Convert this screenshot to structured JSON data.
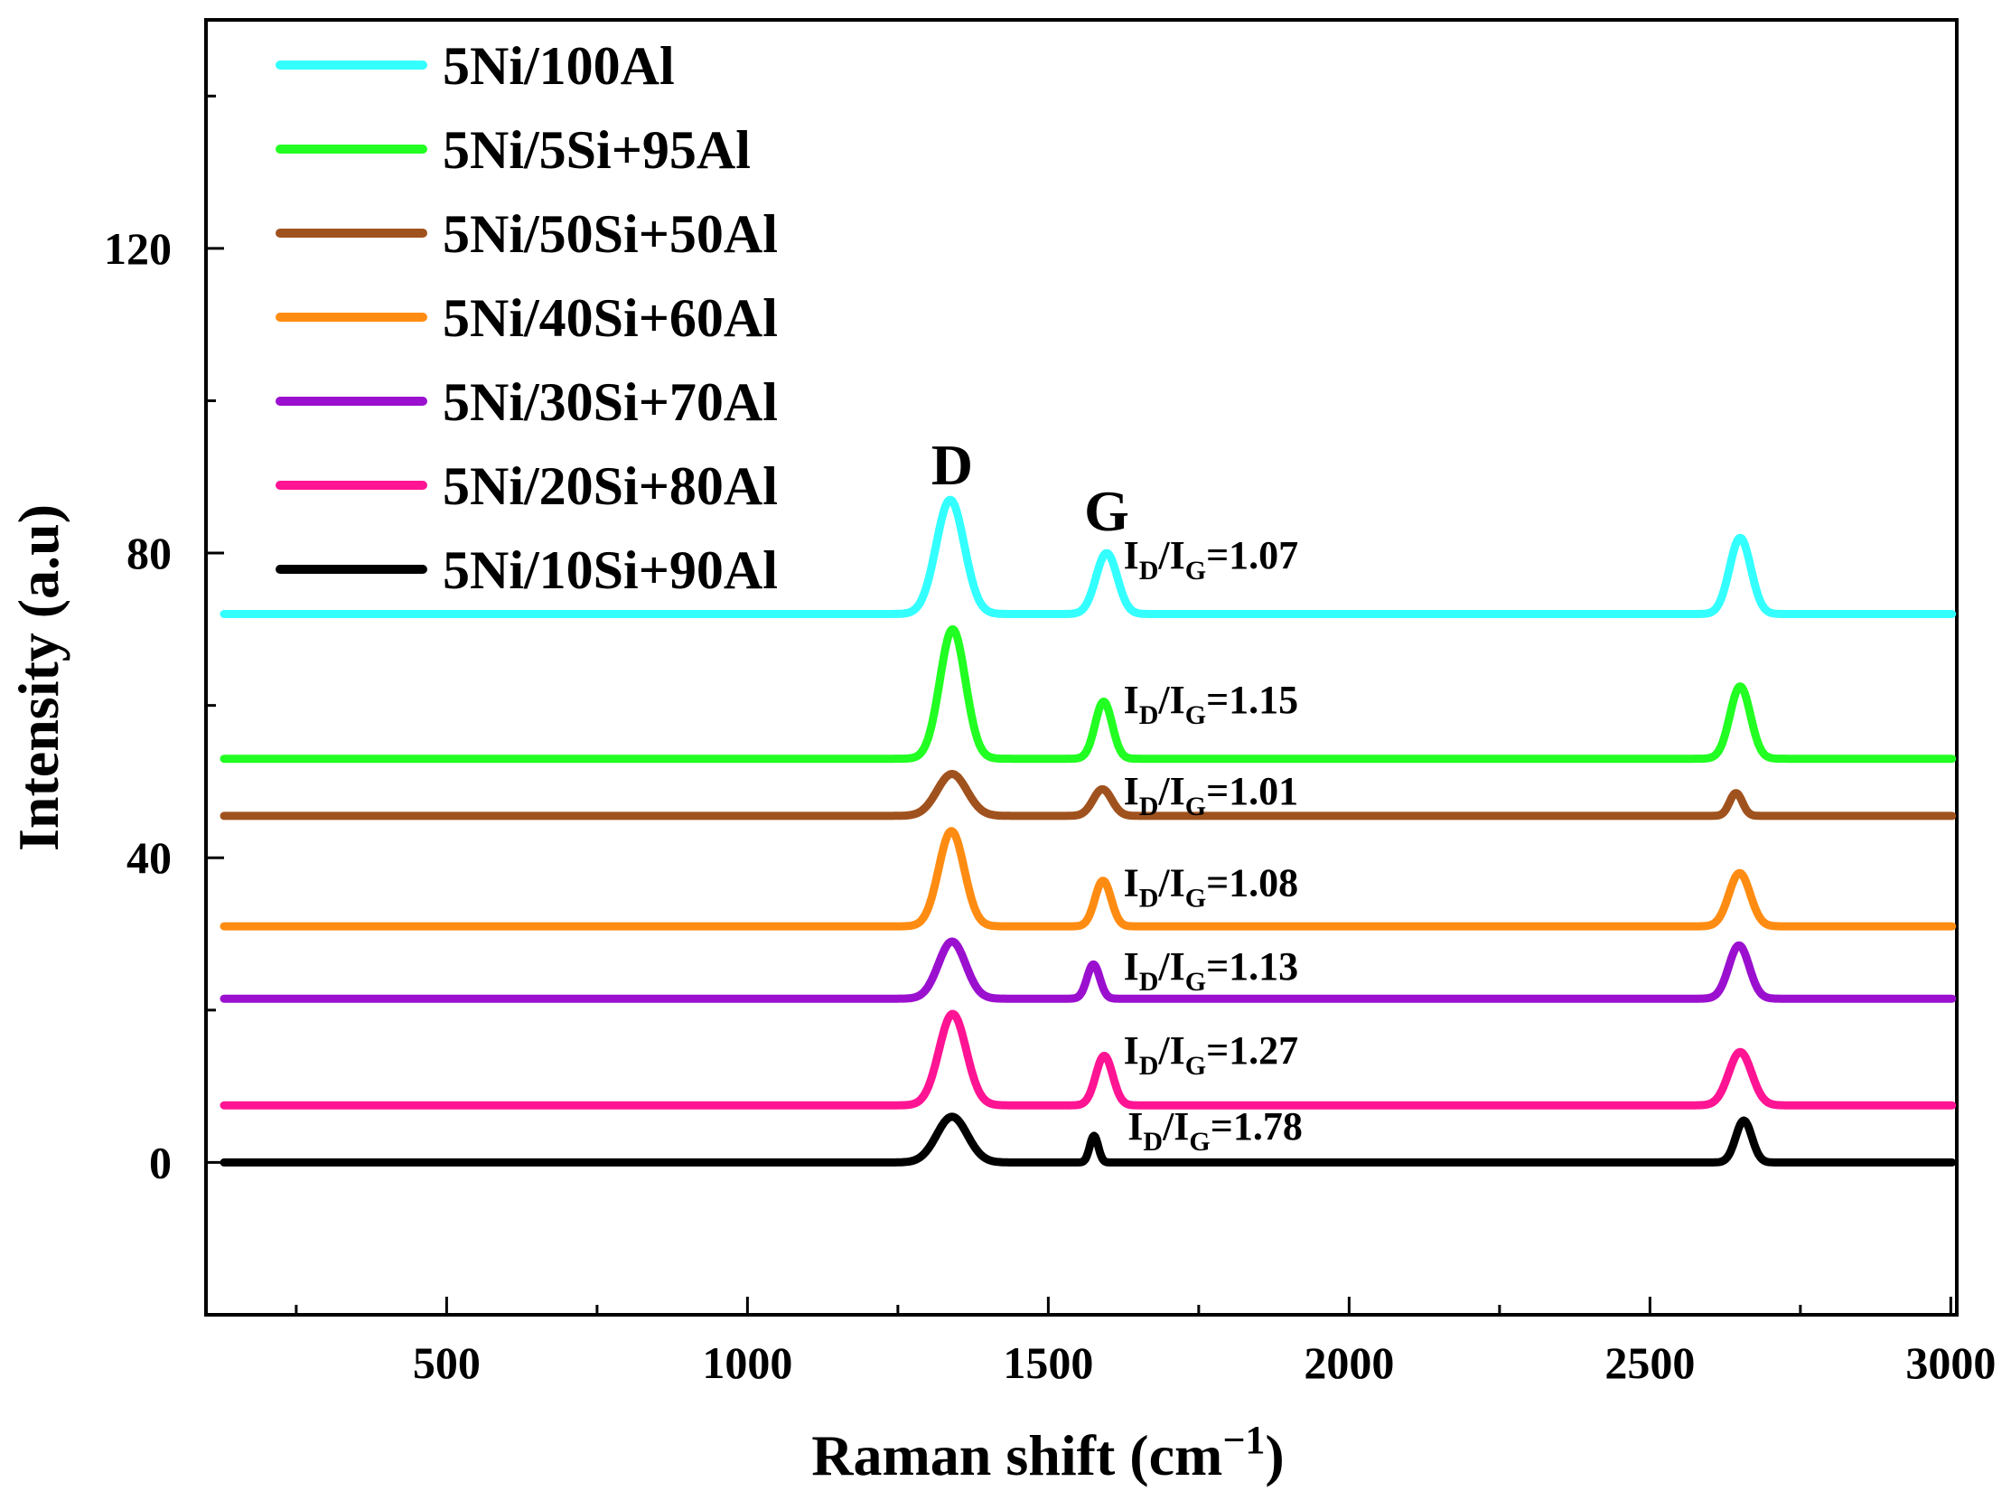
{
  "chart_data": {
    "type": "line",
    "title": "",
    "xlabel": "Raman shift (cm",
    "xlabel_sup": "−1",
    "xlabel_close": ")",
    "ylabel": "Intensity (a.u)",
    "xlim": [
      100,
      3010
    ],
    "ylim": [
      -20,
      150
    ],
    "xticks": [
      500,
      1000,
      1500,
      2000,
      2500,
      3000
    ],
    "yticks": [
      0,
      40,
      80,
      120
    ],
    "peak_labels": [
      {
        "text": "D",
        "x": 1340,
        "y": 89
      },
      {
        "text": "G",
        "x": 1597,
        "y": 83
      }
    ],
    "series": [
      {
        "name": "5Ni/100Al",
        "color": "#33ffff",
        "baseline": 72,
        "d": {
          "x": 1337,
          "h": 15,
          "w": 33
        },
        "g": {
          "x": 1597,
          "h": 8,
          "w": 25
        },
        "p2": {
          "x": 2650,
          "h": 10,
          "w": 25
        },
        "ratio": "1.07",
        "ratio_x": 1625,
        "ratio_y": 78
      },
      {
        "name": "5Ni/5Si+95Al",
        "color": "#22ff22",
        "baseline": 53,
        "d": {
          "x": 1341,
          "h": 17,
          "w": 30
        },
        "g": {
          "x": 1592,
          "h": 7.5,
          "w": 20
        },
        "p2": {
          "x": 2650,
          "h": 9.5,
          "w": 24
        },
        "ratio": "1.15",
        "ratio_x": 1625,
        "ratio_y": 59
      },
      {
        "name": "5Ni/50Si+50Al",
        "color": "#a0521e",
        "baseline": 45.5,
        "d": {
          "x": 1340,
          "h": 5.5,
          "w": 35
        },
        "g": {
          "x": 1590,
          "h": 3.5,
          "w": 22
        },
        "p2": {
          "x": 2643,
          "h": 3,
          "w": 15
        },
        "ratio": "1.01",
        "ratio_x": 1625,
        "ratio_y": 47
      },
      {
        "name": "5Ni/40Si+60Al",
        "color": "#ff8c12",
        "baseline": 31,
        "d": {
          "x": 1339,
          "h": 12.5,
          "w": 30
        },
        "g": {
          "x": 1591,
          "h": 6,
          "w": 19
        },
        "p2": {
          "x": 2649,
          "h": 7,
          "w": 25
        },
        "ratio": "1.08",
        "ratio_x": 1625,
        "ratio_y": 35
      },
      {
        "name": "5Ni/30Si+70Al",
        "color": "#9b10cf",
        "baseline": 21.5,
        "d": {
          "x": 1340,
          "h": 7.5,
          "w": 32
        },
        "g": {
          "x": 1575,
          "h": 4.5,
          "w": 15
        },
        "p2": {
          "x": 2648,
          "h": 7,
          "w": 24
        },
        "ratio": "1.13",
        "ratio_x": 1625,
        "ratio_y": 24
      },
      {
        "name": "5Ni/20Si+80Al",
        "color": "#ff1493",
        "baseline": 7.5,
        "d": {
          "x": 1341,
          "h": 12,
          "w": 32
        },
        "g": {
          "x": 1593,
          "h": 6.5,
          "w": 20
        },
        "p2": {
          "x": 2650,
          "h": 7,
          "w": 27
        },
        "ratio": "1.27",
        "ratio_x": 1625,
        "ratio_y": 13
      },
      {
        "name": "5Ni/10Si+90Al",
        "color": "#000000",
        "baseline": 0,
        "d": {
          "x": 1340,
          "h": 6,
          "w": 36
        },
        "g": {
          "x": 1576,
          "h": 3.5,
          "w": 10
        },
        "p2": {
          "x": 2656,
          "h": 5.5,
          "w": 19
        },
        "ratio": "1.78",
        "ratio_x": 1632,
        "ratio_y": 3
      }
    ],
    "ratio_prefix_I": "I",
    "ratio_sub_D": "D",
    "ratio_sub_G": "G",
    "ratio_eq": "=",
    "legend_position": "top-left"
  }
}
